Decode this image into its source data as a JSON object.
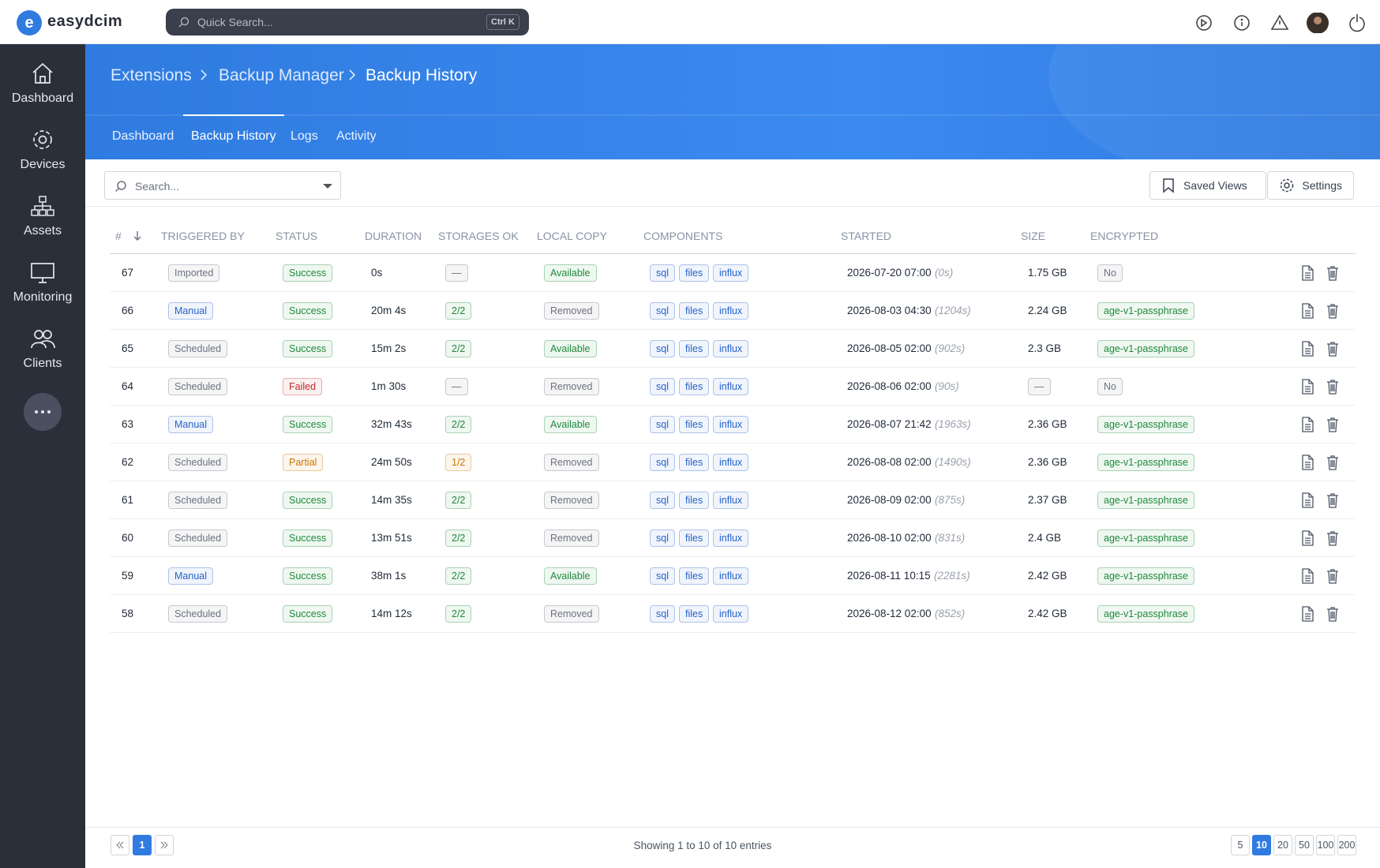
{
  "brand": "easydcim",
  "quick_search": {
    "placeholder": "Quick Search...",
    "shortcut": "Ctrl K"
  },
  "sidebar": [
    "Dashboard",
    "Devices",
    "Assets",
    "Monitoring",
    "Clients"
  ],
  "breadcrumb": [
    "Extensions",
    "Backup Manager",
    "Backup History"
  ],
  "tabs": [
    "Dashboard",
    "Backup History",
    "Logs",
    "Activity"
  ],
  "active_tab": 1,
  "toolbar": {
    "search_placeholder": "Search...",
    "saved_views": "Saved Views",
    "settings": "Settings"
  },
  "table": {
    "columns": [
      "#",
      "TRIGGERED BY",
      "STATUS",
      "DURATION",
      "STORAGES OK",
      "LOCAL COPY",
      "COMPONENTS",
      "STARTED",
      "SIZE",
      "ENCRYPTED"
    ],
    "rows": [
      {
        "id": 67,
        "triggered_by": "Imported",
        "triggered_color": "#6b7280",
        "status": "Success",
        "status_color": "#1f8a3b",
        "duration": "0s",
        "storages_ok": "—",
        "storages_color": "#6b7280",
        "local_copy": "Available",
        "local_copy_color": "#1f8a3b",
        "components": [
          "sql",
          "files",
          "influx"
        ],
        "started": "2026-07-20 07:00",
        "started_ago": "(0s)",
        "size": "1.75 GB",
        "encrypted": "No",
        "encrypted_color": "#6b7280"
      },
      {
        "id": 66,
        "triggered_by": "Manual",
        "triggered_color": "#2563c9",
        "status": "Success",
        "status_color": "#1f8a3b",
        "duration": "20m 4s",
        "storages_ok": "2/2",
        "storages_color": "#1f8a3b",
        "local_copy": "Removed",
        "local_copy_color": "#6b7280",
        "components": [
          "sql",
          "files",
          "influx"
        ],
        "started": "2026-08-03 04:30",
        "started_ago": "(1204s)",
        "size": "2.24 GB",
        "encrypted": "age-v1-passphrase",
        "encrypted_color": "#1f8a3b"
      },
      {
        "id": 65,
        "triggered_by": "Scheduled",
        "triggered_color": "#6b7280",
        "status": "Success",
        "status_color": "#1f8a3b",
        "duration": "15m 2s",
        "storages_ok": "2/2",
        "storages_color": "#1f8a3b",
        "local_copy": "Available",
        "local_copy_color": "#1f8a3b",
        "components": [
          "sql",
          "files",
          "influx"
        ],
        "started": "2026-08-05 02:00",
        "started_ago": "(902s)",
        "size": "2.3 GB",
        "encrypted": "age-v1-passphrase",
        "encrypted_color": "#1f8a3b"
      },
      {
        "id": 64,
        "triggered_by": "Scheduled",
        "triggered_color": "#6b7280",
        "status": "Failed",
        "status_color": "#c62828",
        "duration": "1m 30s",
        "storages_ok": "—",
        "storages_color": "#6b7280",
        "local_copy": "Removed",
        "local_copy_color": "#6b7280",
        "components": [
          "sql",
          "files",
          "influx"
        ],
        "started": "2026-08-06 02:00",
        "started_ago": "(90s)",
        "size": "—",
        "encrypted": "No",
        "encrypted_color": "#6b7280"
      },
      {
        "id": 63,
        "triggered_by": "Manual",
        "triggered_color": "#2563c9",
        "status": "Success",
        "status_color": "#1f8a3b",
        "duration": "32m 43s",
        "storages_ok": "2/2",
        "storages_color": "#1f8a3b",
        "local_copy": "Available",
        "local_copy_color": "#1f8a3b",
        "components": [
          "sql",
          "files",
          "influx"
        ],
        "started": "2026-08-07 21:42",
        "started_ago": "(1963s)",
        "size": "2.36 GB",
        "encrypted": "age-v1-passphrase",
        "encrypted_color": "#1f8a3b"
      },
      {
        "id": 62,
        "triggered_by": "Scheduled",
        "triggered_color": "#6b7280",
        "status": "Partial",
        "status_color": "#c77700",
        "duration": "24m 50s",
        "storages_ok": "1/2",
        "storages_color": "#c77700",
        "local_copy": "Removed",
        "local_copy_color": "#6b7280",
        "components": [
          "sql",
          "files",
          "influx"
        ],
        "started": "2026-08-08 02:00",
        "started_ago": "(1490s)",
        "size": "2.36 GB",
        "encrypted": "age-v1-passphrase",
        "encrypted_color": "#1f8a3b"
      },
      {
        "id": 61,
        "triggered_by": "Scheduled",
        "triggered_color": "#6b7280",
        "status": "Success",
        "status_color": "#1f8a3b",
        "duration": "14m 35s",
        "storages_ok": "2/2",
        "storages_color": "#1f8a3b",
        "local_copy": "Removed",
        "local_copy_color": "#6b7280",
        "components": [
          "sql",
          "files",
          "influx"
        ],
        "started": "2026-08-09 02:00",
        "started_ago": "(875s)",
        "size": "2.37 GB",
        "encrypted": "age-v1-passphrase",
        "encrypted_color": "#1f8a3b"
      },
      {
        "id": 60,
        "triggered_by": "Scheduled",
        "triggered_color": "#6b7280",
        "status": "Success",
        "status_color": "#1f8a3b",
        "duration": "13m 51s",
        "storages_ok": "2/2",
        "storages_color": "#1f8a3b",
        "local_copy": "Removed",
        "local_copy_color": "#6b7280",
        "components": [
          "sql",
          "files",
          "influx"
        ],
        "started": "2026-08-10 02:00",
        "started_ago": "(831s)",
        "size": "2.4 GB",
        "encrypted": "age-v1-passphrase",
        "encrypted_color": "#1f8a3b"
      },
      {
        "id": 59,
        "triggered_by": "Manual",
        "triggered_color": "#2563c9",
        "status": "Success",
        "status_color": "#1f8a3b",
        "duration": "38m 1s",
        "storages_ok": "2/2",
        "storages_color": "#1f8a3b",
        "local_copy": "Available",
        "local_copy_color": "#1f8a3b",
        "components": [
          "sql",
          "files",
          "influx"
        ],
        "started": "2026-08-11 10:15",
        "started_ago": "(2281s)",
        "size": "2.42 GB",
        "encrypted": "age-v1-passphrase",
        "encrypted_color": "#1f8a3b"
      },
      {
        "id": 58,
        "triggered_by": "Scheduled",
        "triggered_color": "#6b7280",
        "status": "Success",
        "status_color": "#1f8a3b",
        "duration": "14m 12s",
        "storages_ok": "2/2",
        "storages_color": "#1f8a3b",
        "local_copy": "Removed",
        "local_copy_color": "#6b7280",
        "components": [
          "sql",
          "files",
          "influx"
        ],
        "started": "2026-08-12 02:00",
        "started_ago": "(852s)",
        "size": "2.42 GB",
        "encrypted": "age-v1-passphrase",
        "encrypted_color": "#1f8a3b"
      }
    ]
  },
  "footer": {
    "page": 1,
    "info": "Showing 1 to 10 of 10 entries",
    "page_sizes": [
      5,
      10,
      20,
      50,
      100,
      200
    ],
    "active_page_size": 1
  }
}
